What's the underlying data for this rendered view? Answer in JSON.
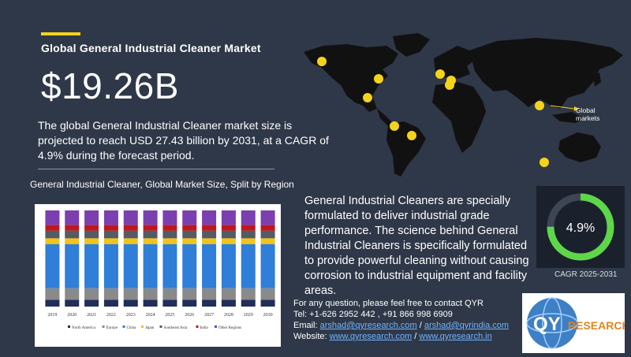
{
  "header": {
    "title": "Global General Industrial Cleaner Market",
    "market_value": "$19.26B",
    "description": "The global General Industrial Cleaner market size is projected to reach USD 27.43 billion by 2031, at a CAGR of 4.9% during the forecast period."
  },
  "map": {
    "label_line1": "Global",
    "label_line2": "markets",
    "marker_color": "#f5d31b",
    "land_color": "#111111"
  },
  "body_text": "General Industrial Cleaners are specially formulated to deliver industrial grade performance. The science behind General Industrial Cleaners is specifically formulated to provide powerful cleaning without causing corrosion to industrial equipment and facility areas.",
  "cagr": {
    "value": "4.9%",
    "fraction": 0.75,
    "label": "CAGR 2025-2031",
    "ring_color": "#5ed64a"
  },
  "contact": {
    "line1": "For any question, please feel free to contact QYR",
    "tel": "Tel: +1-626 2952 442 , +91 866 998 6909",
    "email_label": "Email: ",
    "email1": "arshad@qyresearch.com",
    "email2": "arshad@qyrindia.com",
    "website_label": "Website: ",
    "web1": "www.qyresearch.com",
    "web2": "www.qyresearch.in",
    "sep": " / "
  },
  "logo": {
    "text_q": "QY",
    "text_rest": "RESEARCH"
  },
  "chart_data": {
    "type": "bar",
    "stacked": true,
    "normalized": true,
    "title": "General Industrial Cleaner, Global Market Size, Split by Region",
    "categories": [
      "2019",
      "2020",
      "2021",
      "2022",
      "2023",
      "2024",
      "2025",
      "2026",
      "2027",
      "2028",
      "2029",
      "2030"
    ],
    "series": [
      {
        "name": "North America",
        "color": "#1f2e5a",
        "values": [
          0.07,
          0.07,
          0.07,
          0.07,
          0.07,
          0.07,
          0.07,
          0.07,
          0.07,
          0.07,
          0.07,
          0.07
        ]
      },
      {
        "name": "Europe",
        "color": "#8a8a8a",
        "values": [
          0.12,
          0.12,
          0.12,
          0.12,
          0.12,
          0.12,
          0.12,
          0.12,
          0.12,
          0.12,
          0.12,
          0.12
        ]
      },
      {
        "name": "China",
        "color": "#2f7ed8",
        "values": [
          0.46,
          0.46,
          0.46,
          0.46,
          0.46,
          0.46,
          0.46,
          0.46,
          0.46,
          0.46,
          0.46,
          0.46
        ]
      },
      {
        "name": "Japan",
        "color": "#f0c419",
        "values": [
          0.06,
          0.06,
          0.06,
          0.06,
          0.06,
          0.06,
          0.06,
          0.06,
          0.06,
          0.06,
          0.06,
          0.06
        ]
      },
      {
        "name": "Southeast Asia",
        "color": "#555a63",
        "values": [
          0.08,
          0.08,
          0.08,
          0.08,
          0.08,
          0.08,
          0.08,
          0.08,
          0.08,
          0.08,
          0.08,
          0.08
        ]
      },
      {
        "name": "India",
        "color": "#c0171c",
        "values": [
          0.06,
          0.06,
          0.06,
          0.06,
          0.06,
          0.06,
          0.06,
          0.06,
          0.06,
          0.06,
          0.06,
          0.06
        ]
      },
      {
        "name": "Other Regions",
        "color": "#7b3fb0",
        "values": [
          0.15,
          0.15,
          0.15,
          0.15,
          0.15,
          0.15,
          0.15,
          0.15,
          0.15,
          0.15,
          0.15,
          0.15
        ]
      }
    ],
    "legend_position": "bottom",
    "grid": false
  }
}
